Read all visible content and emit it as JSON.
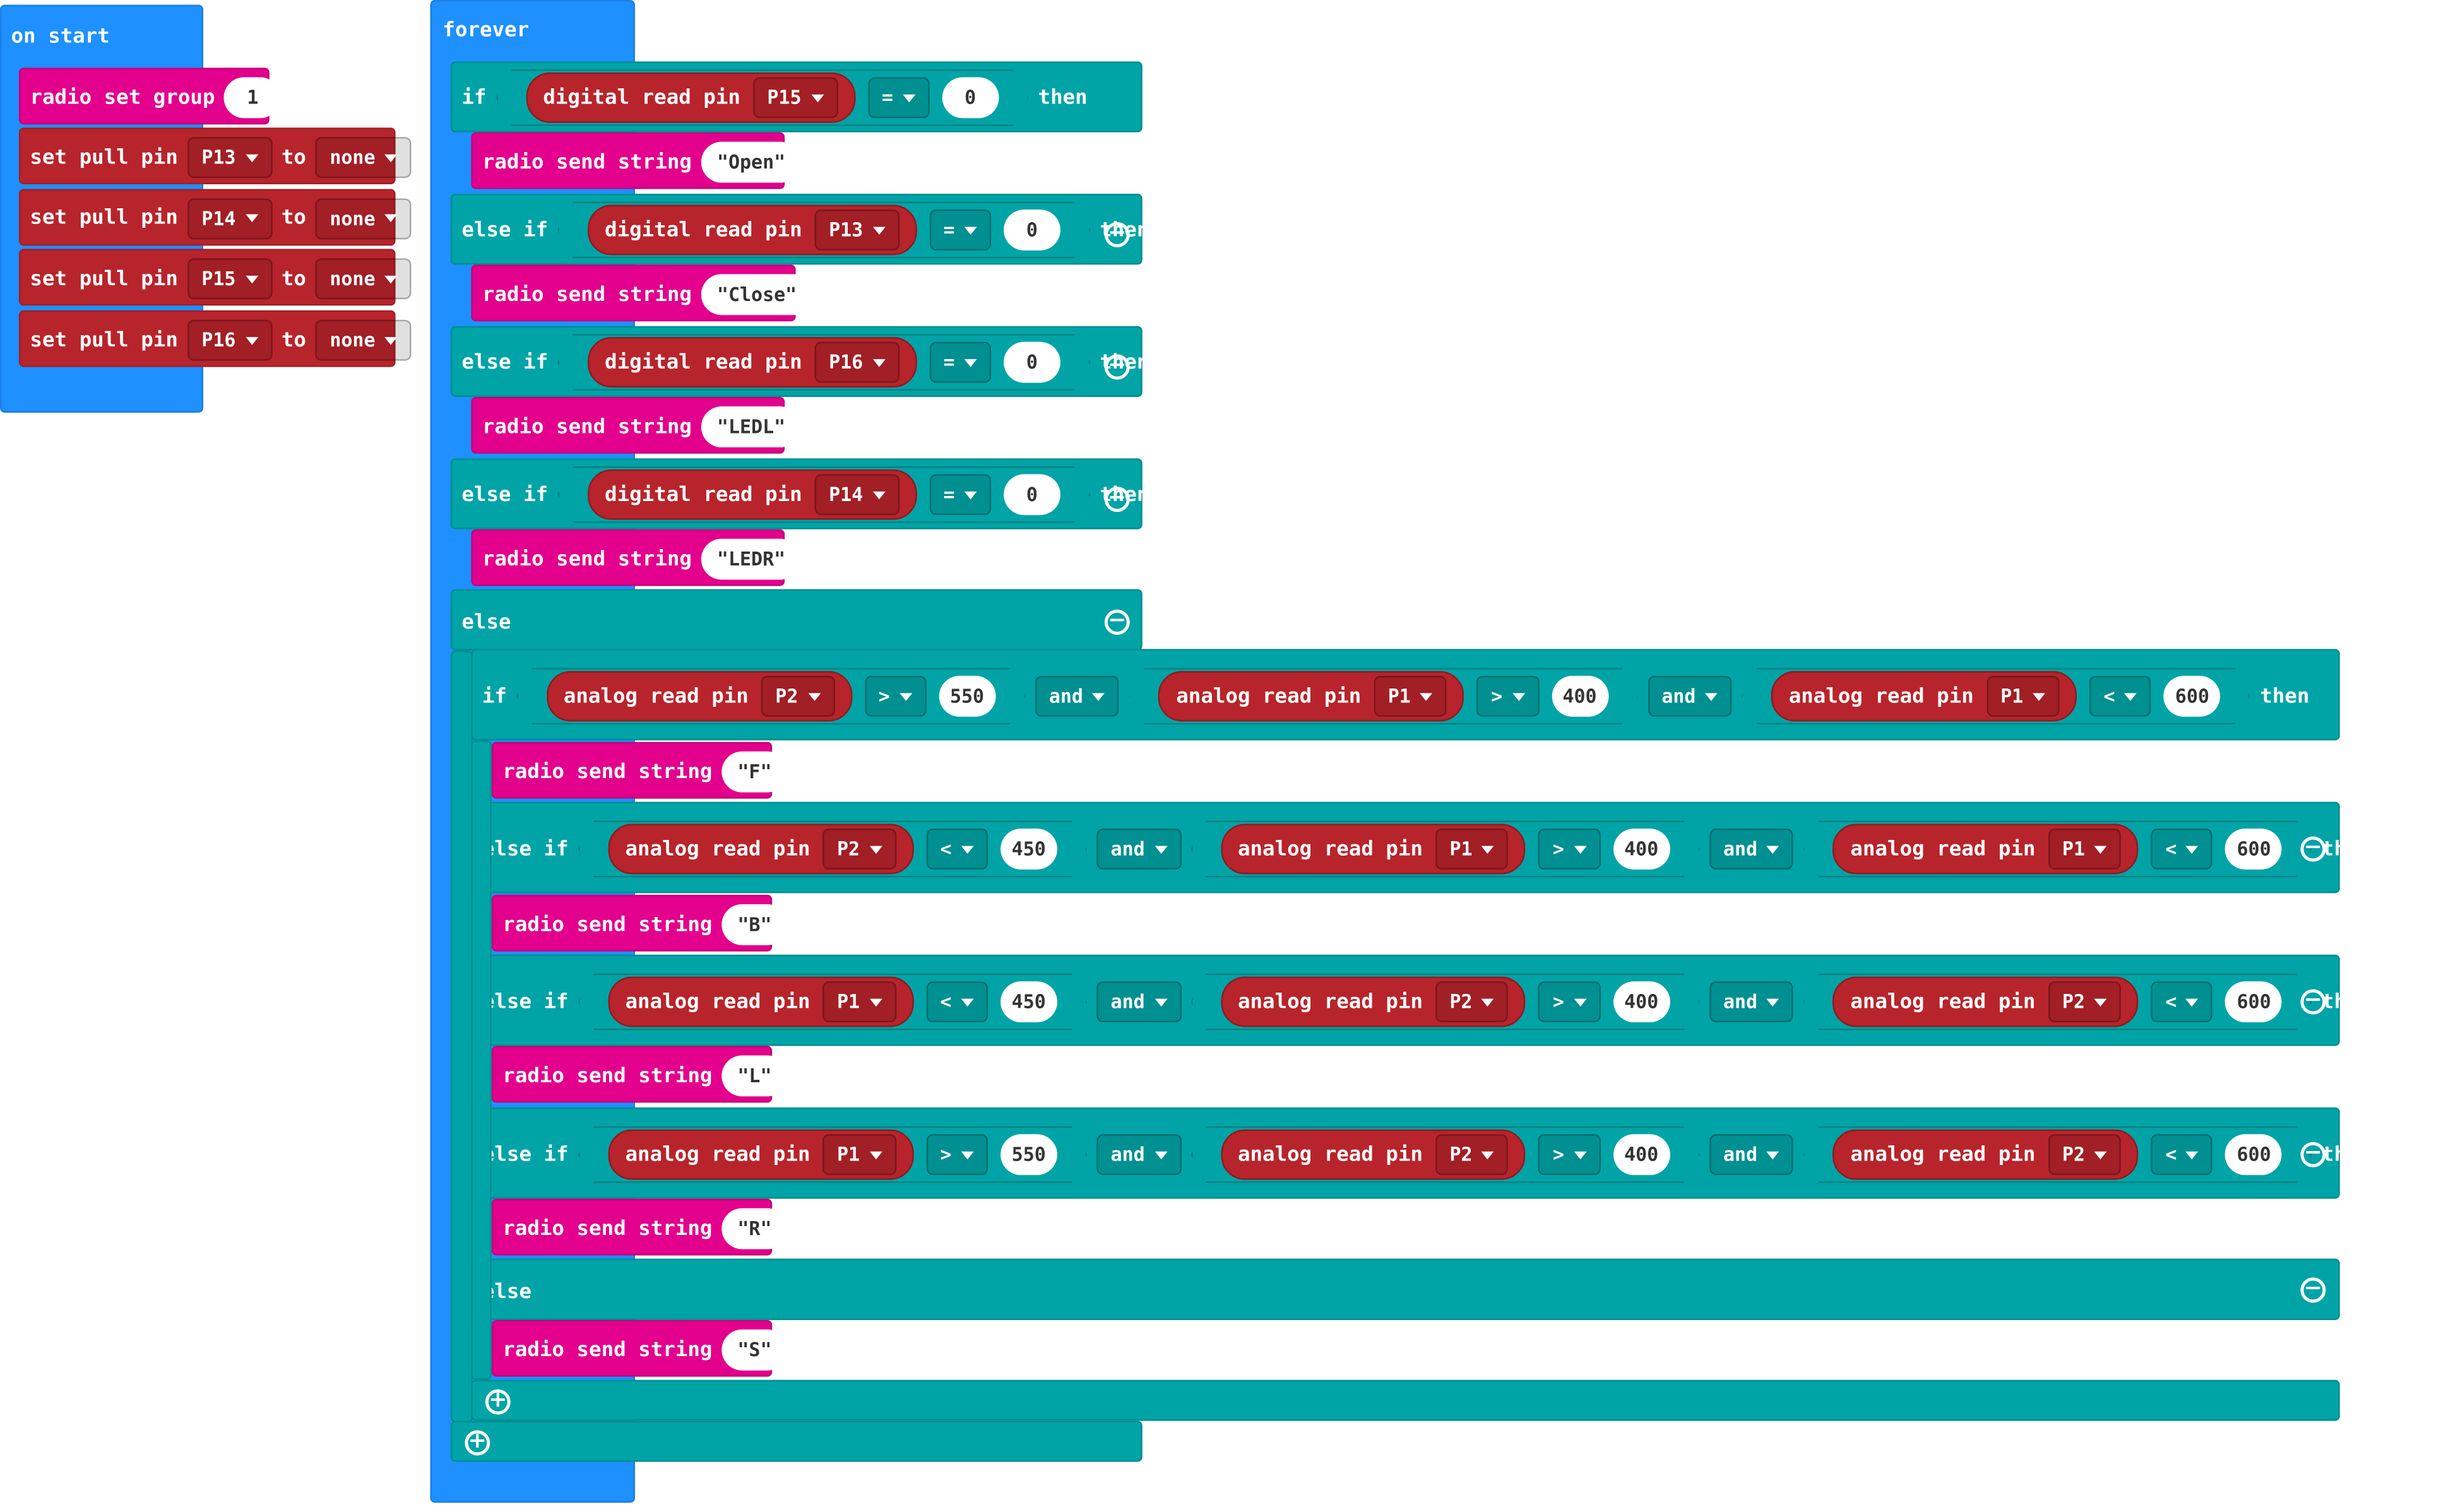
{
  "on_start": {
    "label": "on start",
    "radio_group": {
      "label": "radio set group",
      "value": "1"
    },
    "pulls": [
      {
        "label": "set pull pin",
        "pin": "P13",
        "to": "to",
        "mode": "none"
      },
      {
        "label": "set pull pin",
        "pin": "P14",
        "to": "to",
        "mode": "none"
      },
      {
        "label": "set pull pin",
        "pin": "P15",
        "to": "to",
        "mode": "none"
      },
      {
        "label": "set pull pin",
        "pin": "P16",
        "to": "to",
        "mode": "none"
      }
    ]
  },
  "forever": {
    "label": "forever",
    "kw": {
      "if": "if",
      "else_if": "else if",
      "else": "else",
      "then": "then",
      "and": "and",
      "digital": "digital read pin",
      "analog": "analog read pin",
      "send": "radio send string"
    },
    "outer": [
      {
        "pin": "P15",
        "op": "=",
        "val": "0",
        "send": "\"Open\""
      },
      {
        "pin": "P13",
        "op": "=",
        "val": "0",
        "send": "\"Close\""
      },
      {
        "pin": "P16",
        "op": "=",
        "val": "0",
        "send": "\"LEDL\""
      },
      {
        "pin": "P14",
        "op": "=",
        "val": "0",
        "send": "\"LEDR\""
      }
    ],
    "inner": [
      {
        "c": [
          {
            "pin": "P2",
            "op": ">",
            "val": "550"
          },
          {
            "pin": "P1",
            "op": ">",
            "val": "400"
          },
          {
            "pin": "P1",
            "op": "<",
            "val": "600"
          }
        ],
        "send": "\"F\""
      },
      {
        "c": [
          {
            "pin": "P2",
            "op": "<",
            "val": "450"
          },
          {
            "pin": "P1",
            "op": ">",
            "val": "400"
          },
          {
            "pin": "P1",
            "op": "<",
            "val": "600"
          }
        ],
        "send": "\"B\""
      },
      {
        "c": [
          {
            "pin": "P1",
            "op": "<",
            "val": "450"
          },
          {
            "pin": "P2",
            "op": ">",
            "val": "400"
          },
          {
            "pin": "P2",
            "op": "<",
            "val": "600"
          }
        ],
        "send": "\"L\""
      },
      {
        "c": [
          {
            "pin": "P1",
            "op": ">",
            "val": "550"
          },
          {
            "pin": "P2",
            "op": ">",
            "val": "400"
          },
          {
            "pin": "P2",
            "op": "<",
            "val": "600"
          }
        ],
        "send": "\"R\""
      }
    ],
    "inner_else_send": "\"S\""
  }
}
